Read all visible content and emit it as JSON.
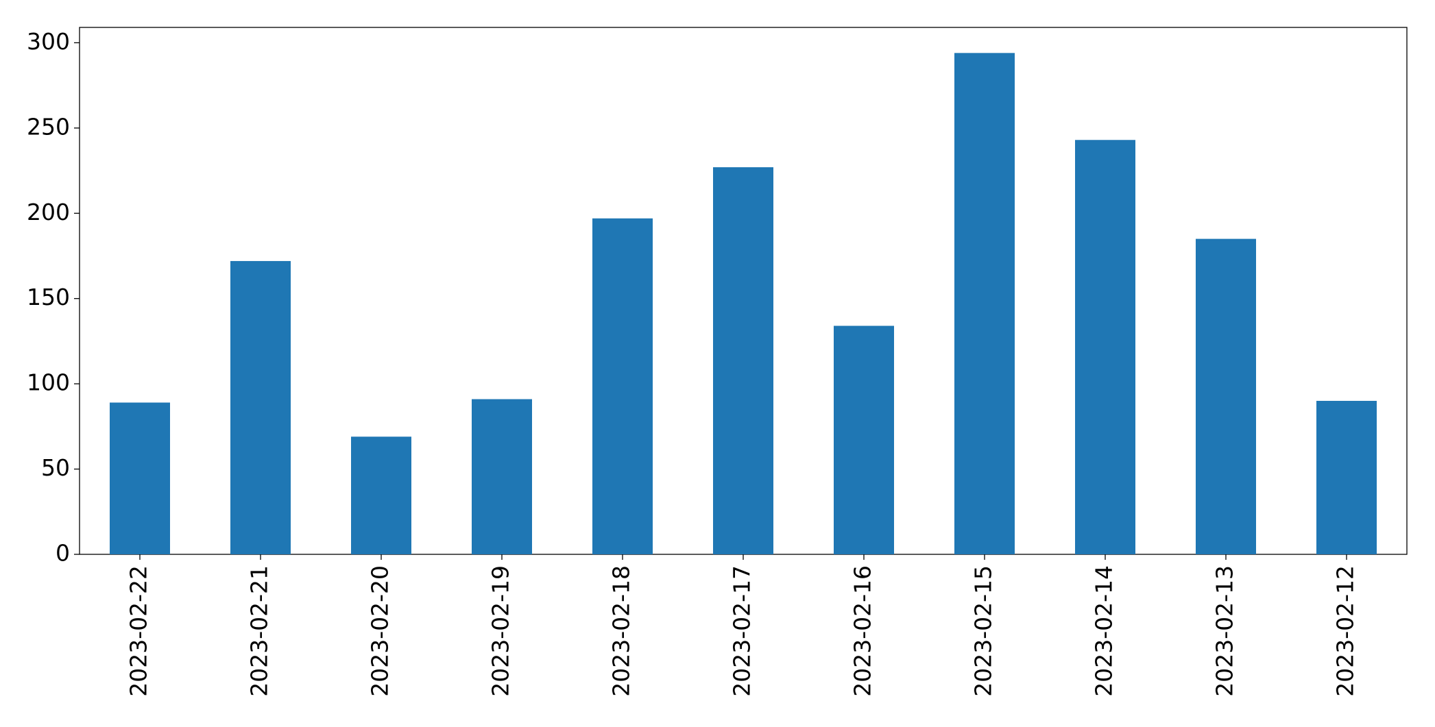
{
  "chart_data": {
    "type": "bar",
    "categories": [
      "2023-02-22",
      "2023-02-21",
      "2023-02-20",
      "2023-02-19",
      "2023-02-18",
      "2023-02-17",
      "2023-02-16",
      "2023-02-15",
      "2023-02-14",
      "2023-02-13",
      "2023-02-12"
    ],
    "values": [
      89,
      172,
      69,
      91,
      197,
      227,
      134,
      294,
      243,
      185,
      90
    ],
    "color": "#1f77b4",
    "ylim": [
      0,
      309
    ],
    "yticks": [
      0,
      50,
      100,
      150,
      200,
      250,
      300
    ],
    "grid": false
  }
}
